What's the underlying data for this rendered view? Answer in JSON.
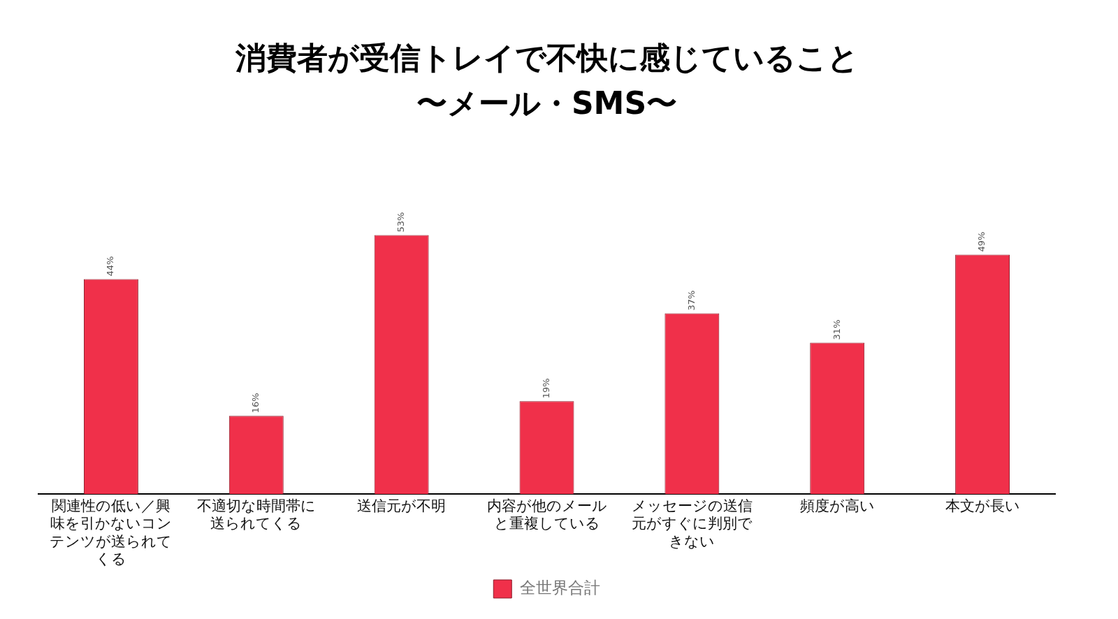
{
  "chart_data": {
    "type": "bar",
    "title": "消費者が受信トレイで不快に感じていること",
    "subtitle": "〜メール・SMS〜",
    "categories": [
      "関連性の低い／興味を引かないコンテンツが送られてくる",
      "不適切な時間帯に送られてくる",
      "送信元が不明",
      "内容が他のメールと重複している",
      "メッセージの送信元がすぐに判別できない",
      "頻度が高い",
      "本文が長い"
    ],
    "series": [
      {
        "name": "全世界合計",
        "color": "#f0304a",
        "values": [
          44,
          16,
          53,
          19,
          37,
          31,
          49
        ],
        "value_labels": [
          "44%",
          "16%",
          "53%",
          "19%",
          "37%",
          "31%",
          "49%"
        ]
      }
    ],
    "legend": "bottom",
    "grid": false
  }
}
